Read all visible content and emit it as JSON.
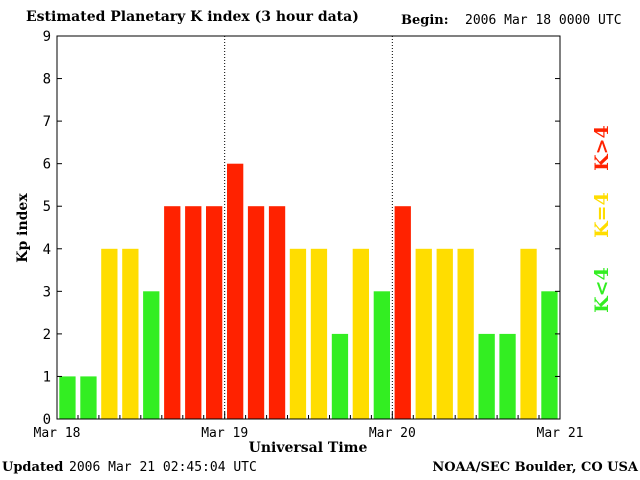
{
  "header": {
    "title": "Estimated Planetary K index (3 hour data)",
    "begin_label": "Begin:",
    "begin_value": "2006 Mar 18 0000 UTC"
  },
  "footer": {
    "updated_label": "Updated",
    "updated_value": "2006 Mar 21 02:45:04 UTC",
    "credit": "NOAA/SEC Boulder, CO USA"
  },
  "legend": [
    {
      "label": "K<4",
      "color": "#33ee22"
    },
    {
      "label": "K=4",
      "color": "#ffdd00"
    },
    {
      "label": "K>4",
      "color": "#ff2200"
    }
  ],
  "chart_data": {
    "type": "bar",
    "title": "Estimated Planetary K index (3 hour data)",
    "xlabel": "Universal Time",
    "ylabel": "Kp index",
    "ylim": [
      0,
      9
    ],
    "yticks": [
      0,
      1,
      2,
      3,
      4,
      5,
      6,
      7,
      8,
      9
    ],
    "xtick_labels": [
      "Mar 18",
      "Mar 19",
      "Mar 20",
      "Mar 21"
    ],
    "grid": false,
    "day_separators": [
      "Mar 19",
      "Mar 20"
    ],
    "values": [
      1,
      1,
      4,
      4,
      3,
      5,
      5,
      5,
      6,
      5,
      5,
      4,
      4,
      2,
      4,
      3,
      5,
      4,
      4,
      4,
      2,
      2,
      4,
      3
    ],
    "colors": {
      "below4": "#33ee22",
      "equal4": "#ffdd00",
      "above4": "#ff2200"
    }
  }
}
